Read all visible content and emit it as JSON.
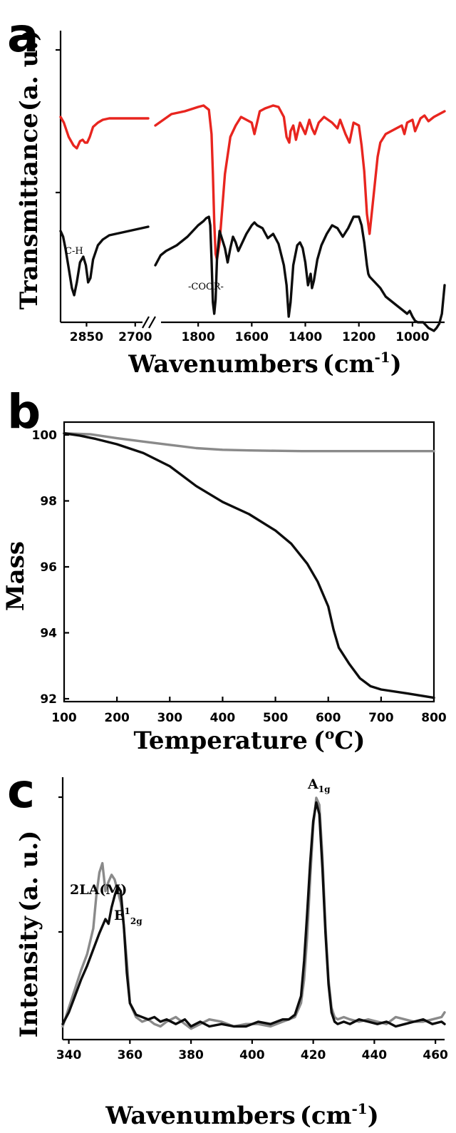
{
  "colors": {
    "red": "#e8251f",
    "black": "#0d0d0d",
    "gray": "#8a8a8a"
  },
  "chart_data": [
    {
      "panel": "a",
      "type": "line",
      "xlabel": "Wavenumbers",
      "xunit_base": "cm",
      "xunit_exp": "-1",
      "ylabel": "Transmittance",
      "yunit": "(a. u.)",
      "axis_break": true,
      "x_ticks_left": [
        "2850",
        "2700"
      ],
      "x_ticks_right": [
        "1800",
        "1600",
        "1400",
        "1200",
        "1000"
      ],
      "annotations": {
        "ch": "C-H",
        "coor": "-COOR-"
      },
      "series": [
        {
          "color": "red",
          "left": {
            "x": [
              2930,
              2920,
              2905,
              2890,
              2880,
              2870,
              2862,
              2855,
              2848,
              2840,
              2830,
              2815,
              2800,
              2780,
              2760,
              2740,
              2720,
              2700,
              2680,
              2660
            ],
            "y": [
              7.2,
              7.0,
              6.5,
              6.2,
              6.1,
              6.35,
              6.4,
              6.3,
              6.3,
              6.5,
              6.85,
              7.0,
              7.1,
              7.15,
              7.15,
              7.15,
              7.15,
              7.15,
              7.15,
              7.15
            ]
          },
          "right": {
            "x": [
              1960,
              1900,
              1850,
              1800,
              1780,
              1760,
              1750,
              1745,
              1740,
              1735,
              1730,
              1720,
              1700,
              1680,
              1660,
              1640,
              1620,
              1600,
              1590,
              1570,
              1550,
              1520,
              1500,
              1480,
              1470,
              1460,
              1455,
              1445,
              1435,
              1420,
              1400,
              1385,
              1375,
              1365,
              1350,
              1330,
              1300,
              1280,
              1270,
              1250,
              1235,
              1220,
              1200,
              1190,
              1180,
              1170,
              1160,
              1150,
              1130,
              1120,
              1100,
              1080,
              1060,
              1040,
              1030,
              1020,
              1000,
              990,
              970,
              955,
              940,
              920,
              900,
              880
            ],
            "y": [
              6.9,
              7.3,
              7.4,
              7.55,
              7.6,
              7.45,
              6.6,
              5.2,
              3.5,
              2.4,
              2.2,
              2.8,
              5.2,
              6.5,
              6.9,
              7.2,
              7.1,
              7.0,
              6.6,
              7.4,
              7.5,
              7.6,
              7.55,
              7.2,
              6.5,
              6.3,
              6.7,
              6.9,
              6.4,
              7.0,
              6.6,
              7.1,
              6.8,
              6.6,
              7.0,
              7.2,
              7.0,
              6.8,
              7.1,
              6.6,
              6.3,
              7.0,
              6.9,
              6.2,
              5.3,
              3.8,
              3.1,
              4.0,
              5.8,
              6.3,
              6.6,
              6.7,
              6.8,
              6.9,
              6.6,
              7.0,
              7.1,
              6.7,
              7.15,
              7.25,
              7.05,
              7.2,
              7.3,
              7.4
            ]
          }
        },
        {
          "color": "black",
          "left": {
            "x": [
              2930,
              2922,
              2915,
              2905,
              2895,
              2888,
              2880,
              2870,
              2860,
              2852,
              2845,
              2838,
              2830,
              2815,
              2800,
              2780,
              2760,
              2740,
              2720,
              2700,
              2680,
              2660
            ],
            "y": [
              3.2,
              3.0,
              2.6,
              1.9,
              1.2,
              0.95,
              1.4,
              2.1,
              2.3,
              2.0,
              1.4,
              1.55,
              2.2,
              2.7,
              2.9,
              3.05,
              3.1,
              3.15,
              3.2,
              3.25,
              3.3,
              3.35
            ]
          },
          "right": {
            "x": [
              1960,
              1940,
              1920,
              1900,
              1880,
              1860,
              1840,
              1820,
              1800,
              1780,
              1770,
              1760,
              1755,
              1750,
              1745,
              1740,
              1735,
              1730,
              1720,
              1700,
              1690,
              1680,
              1670,
              1660,
              1650,
              1640,
              1620,
              1600,
              1590,
              1580,
              1560,
              1540,
              1520,
              1500,
              1480,
              1470,
              1462,
              1455,
              1445,
              1430,
              1420,
              1410,
              1400,
              1390,
              1380,
              1375,
              1368,
              1355,
              1340,
              1320,
              1300,
              1280,
              1260,
              1240,
              1220,
              1200,
              1190,
              1180,
              1170,
              1165,
              1160,
              1150,
              1140,
              1120,
              1100,
              1080,
              1060,
              1040,
              1020,
              1010,
              1000,
              990,
              980,
              960,
              950,
              940,
              930,
              920,
              910,
              900,
              890,
              880
            ],
            "y": [
              2.0,
              2.35,
              2.5,
              2.6,
              2.7,
              2.85,
              3.0,
              3.2,
              3.4,
              3.55,
              3.65,
              3.7,
              3.4,
              2.2,
              0.7,
              0.3,
              0.8,
              2.2,
              3.2,
              2.6,
              2.1,
              2.6,
              3.0,
              2.8,
              2.5,
              2.7,
              3.1,
              3.4,
              3.5,
              3.4,
              3.3,
              2.95,
              3.1,
              2.75,
              2.0,
              1.3,
              0.2,
              0.7,
              2.0,
              2.7,
              2.8,
              2.6,
              2.1,
              1.3,
              1.7,
              1.2,
              1.45,
              2.2,
              2.7,
              3.1,
              3.4,
              3.3,
              3.0,
              3.3,
              3.7,
              3.7,
              3.4,
              2.8,
              2.0,
              1.7,
              1.6,
              1.5,
              1.4,
              1.2,
              0.9,
              0.75,
              0.6,
              0.45,
              0.3,
              0.4,
              0.2,
              0.05,
              0.0,
              0.0,
              -0.1,
              -0.2,
              -0.25,
              -0.3,
              -0.2,
              -0.05,
              0.3,
              1.3
            ]
          }
        }
      ]
    },
    {
      "panel": "b",
      "type": "line",
      "xlabel": "Temperature",
      "xunit_sup": "o",
      "xunit_base": "C",
      "ylabel": "Mass",
      "xlim": [
        100,
        800
      ],
      "ylim": [
        92,
        100
      ],
      "x_ticks": [
        "100",
        "200",
        "300",
        "400",
        "500",
        "600",
        "700",
        "800"
      ],
      "y_ticks": [
        "100",
        "98",
        "96",
        "94",
        "92"
      ],
      "series": [
        {
          "color": "gray",
          "x": [
            100,
            150,
            200,
            250,
            300,
            350,
            400,
            450,
            500,
            550,
            600,
            650,
            700,
            750,
            800
          ],
          "y": [
            100.05,
            100.02,
            99.9,
            99.8,
            99.7,
            99.6,
            99.55,
            99.53,
            99.52,
            99.51,
            99.51,
            99.51,
            99.51,
            99.51,
            99.51
          ]
        },
        {
          "color": "black",
          "x": [
            100,
            130,
            160,
            200,
            250,
            300,
            350,
            400,
            450,
            500,
            530,
            560,
            580,
            600,
            610,
            620,
            640,
            660,
            680,
            700,
            750,
            800
          ],
          "y": [
            100.05,
            99.98,
            99.88,
            99.72,
            99.45,
            99.05,
            98.45,
            97.97,
            97.6,
            97.1,
            96.7,
            96.1,
            95.55,
            94.8,
            94.1,
            93.55,
            93.05,
            92.62,
            92.38,
            92.28,
            92.16,
            92.03
          ]
        }
      ]
    },
    {
      "panel": "c",
      "type": "line",
      "xlabel": "Wavenumbers",
      "xunit_base": "cm",
      "xunit_exp": "-1",
      "ylabel": "Intensity",
      "yunit": "(a. u.)",
      "xlim": [
        338,
        463
      ],
      "x_ticks": [
        "340",
        "360",
        "380",
        "400",
        "420",
        "440",
        "460"
      ],
      "annotations": {
        "la_text": "2LA(M)",
        "e_base": "E",
        "e_sup": "1",
        "e_sub": "2g",
        "a_base": "A",
        "a_sub": "1g"
      },
      "series": [
        {
          "color": "gray",
          "x": [
            338,
            340,
            342,
            344,
            346,
            348,
            349,
            350,
            351,
            352,
            353,
            354,
            355,
            356,
            357,
            358,
            359,
            360,
            362,
            364,
            366,
            368,
            370,
            372,
            375,
            378,
            380,
            383,
            386,
            390,
            394,
            398,
            402,
            406,
            410,
            412,
            414,
            416,
            417,
            418,
            419,
            420,
            421,
            422,
            423,
            424,
            425,
            426,
            427,
            428,
            430,
            432,
            435,
            438,
            441,
            444,
            447,
            450,
            453,
            456,
            459,
            462,
            463
          ],
          "y": [
            0.02,
            0.1,
            0.18,
            0.26,
            0.33,
            0.44,
            0.58,
            0.68,
            0.72,
            0.6,
            0.64,
            0.67,
            0.65,
            0.6,
            0.55,
            0.45,
            0.3,
            0.12,
            0.06,
            0.04,
            0.05,
            0.03,
            0.02,
            0.04,
            0.06,
            0.03,
            0.01,
            0.03,
            0.05,
            0.04,
            0.02,
            0.03,
            0.03,
            0.02,
            0.04,
            0.05,
            0.06,
            0.12,
            0.22,
            0.4,
            0.65,
            0.88,
            1.0,
            0.97,
            0.75,
            0.45,
            0.22,
            0.1,
            0.06,
            0.05,
            0.06,
            0.05,
            0.04,
            0.05,
            0.04,
            0.03,
            0.06,
            0.05,
            0.04,
            0.04,
            0.05,
            0.06,
            0.08
          ]
        },
        {
          "color": "black",
          "x": [
            338,
            340,
            342,
            344,
            346,
            348,
            350,
            352,
            353,
            354,
            355,
            356,
            357,
            358,
            359,
            360,
            362,
            364,
            366,
            368,
            370,
            372,
            375,
            378,
            380,
            383,
            386,
            390,
            394,
            398,
            402,
            406,
            410,
            412,
            414,
            416,
            417,
            418,
            419,
            420,
            421,
            422,
            423,
            424,
            425,
            426,
            427,
            428,
            430,
            432,
            435,
            438,
            441,
            444,
            447,
            450,
            453,
            456,
            459,
            462,
            463
          ],
          "y": [
            0.03,
            0.08,
            0.15,
            0.22,
            0.28,
            0.35,
            0.42,
            0.48,
            0.46,
            0.53,
            0.58,
            0.62,
            0.6,
            0.45,
            0.25,
            0.12,
            0.07,
            0.06,
            0.05,
            0.06,
            0.04,
            0.05,
            0.03,
            0.05,
            0.02,
            0.04,
            0.02,
            0.03,
            0.02,
            0.02,
            0.04,
            0.03,
            0.05,
            0.05,
            0.07,
            0.15,
            0.3,
            0.5,
            0.72,
            0.9,
            0.98,
            0.93,
            0.7,
            0.42,
            0.2,
            0.08,
            0.04,
            0.03,
            0.04,
            0.03,
            0.05,
            0.04,
            0.03,
            0.04,
            0.02,
            0.03,
            0.04,
            0.05,
            0.03,
            0.04,
            0.03
          ]
        }
      ]
    }
  ]
}
